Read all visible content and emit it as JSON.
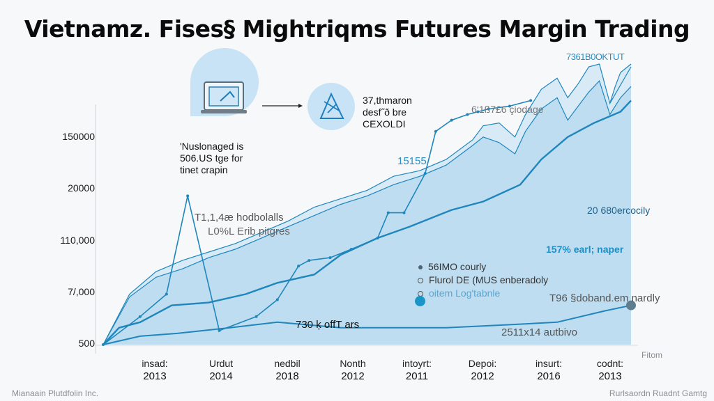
{
  "chart_data": {
    "type": "area",
    "title": "Vietnamz. Fises§ Mightriqms Futures Margin Trading",
    "xlabel": "",
    "ylabel": "",
    "y_tick_labels": [
      "150000",
      "20000",
      "110,000",
      "7/,000",
      "500"
    ],
    "x_tick_labels": [
      {
        "top": "insad:",
        "bottom": "2013"
      },
      {
        "top": "Urdut",
        "bottom": "2014"
      },
      {
        "top": "nedbil",
        "bottom": "2018"
      },
      {
        "top": "Nonth",
        "bottom": "2012"
      },
      {
        "top": "intoyrt:",
        "bottom": "2011"
      },
      {
        "top": "Depoi:",
        "bottom": "2012"
      },
      {
        "top": "insurt:",
        "bottom": "2016"
      },
      {
        "top": "codnt:",
        "bottom": "2013"
      }
    ],
    "x_extra_label": "Fitom",
    "ylim": [
      0,
      100
    ],
    "grid": false,
    "series": [
      {
        "name": "upper-area",
        "style": "area-light",
        "x": [
          0,
          5,
          10,
          15,
          20,
          25,
          30,
          35,
          40,
          45,
          50,
          55,
          60,
          65,
          70,
          72,
          75,
          78,
          80,
          83,
          86,
          88,
          90,
          92,
          94,
          96,
          97,
          98,
          100
        ],
        "values": [
          0,
          18,
          26,
          30,
          33,
          36,
          40,
          44,
          49,
          52,
          55,
          60,
          62,
          66,
          73,
          78,
          79,
          74,
          82,
          91,
          95,
          88,
          93,
          99,
          100,
          86,
          92,
          97,
          100
        ]
      },
      {
        "name": "mid-area",
        "style": "area-mid",
        "x": [
          0,
          5,
          10,
          15,
          20,
          25,
          30,
          35,
          40,
          45,
          50,
          55,
          60,
          65,
          70,
          72,
          75,
          78,
          80,
          83,
          86,
          88,
          90,
          92,
          94,
          96,
          98,
          100
        ],
        "values": [
          0,
          17,
          24,
          27,
          31,
          34,
          38,
          42,
          46,
          50,
          53,
          57,
          60,
          64,
          71,
          74,
          72,
          68,
          76,
          84,
          88,
          80,
          85,
          90,
          94,
          82,
          88,
          92
        ]
      },
      {
        "name": "main-line",
        "style": "line-bold",
        "x": [
          0,
          3,
          7,
          13,
          20,
          27,
          33,
          40,
          45,
          52,
          58,
          66,
          72,
          79,
          83,
          88,
          93,
          98,
          100
        ],
        "values": [
          0,
          6,
          8,
          14,
          15,
          18,
          22,
          25,
          32,
          38,
          42,
          48,
          51,
          57,
          66,
          74,
          79,
          83,
          87
        ]
      },
      {
        "name": "low-line",
        "style": "line",
        "x": [
          0,
          7,
          14,
          24,
          33,
          45,
          55,
          65,
          76,
          86,
          95,
          100
        ],
        "values": [
          0,
          3,
          4,
          6,
          8,
          6,
          6,
          6,
          7,
          8,
          12,
          14
        ]
      },
      {
        "name": "steep-line",
        "style": "line-markers",
        "x": [
          0,
          7,
          12,
          16,
          22,
          29,
          33,
          37,
          39,
          43,
          47,
          52,
          54,
          57,
          61,
          63,
          66,
          69,
          71,
          73,
          77,
          81
        ],
        "values": [
          0,
          10,
          18,
          53,
          5,
          10,
          16,
          28,
          30,
          31,
          34,
          38,
          47,
          47,
          61,
          76,
          80,
          82,
          83,
          84,
          85,
          87
        ]
      }
    ],
    "end_marker_value": 14
  },
  "annotations": {
    "top_value": "7361B0OKTUT",
    "note_3_lines": [
      "37,thmaron",
      "desf˝ð bre",
      "CEXOLDI"
    ],
    "laptop_caption": [
      "'Nuslonaged is",
      "506.US tge for",
      "tinet crapin"
    ],
    "peak_label": "15155",
    "hodbolalls": "T1,1,4æ hodbolalls",
    "lopiges": "L0%L Erib pitgres",
    "coverage": "6‘1ß7£6 çiodage",
    "right_mid": "20 680ercocily",
    "percent_label": "157% earl; naper",
    "bottom_center": "730 ķ offT ars",
    "bottom_right": "2511x14 autbivo",
    "end_label": "T96 §doband.em nardly"
  },
  "legend": [
    {
      "label": "56IMO courly",
      "marker": "dot-dark"
    },
    {
      "label": "Flurol DE (MUS enberadoly",
      "marker": "ring"
    },
    {
      "label": "oitem Log'tabnle",
      "marker": "ring-blue"
    }
  ],
  "footer": {
    "left": "Mianaain Plutdfolin Inc.",
    "right": "Rurlsaordn Ruadnt Gamtg"
  },
  "colors": {
    "accent": "#1b8fc6",
    "line": "#1f86bd",
    "area_light": "#d3e8f5",
    "area_mid": "#b6d8ee",
    "bg": "#f7f8f9",
    "marker_dark": "#5f7d8e"
  }
}
